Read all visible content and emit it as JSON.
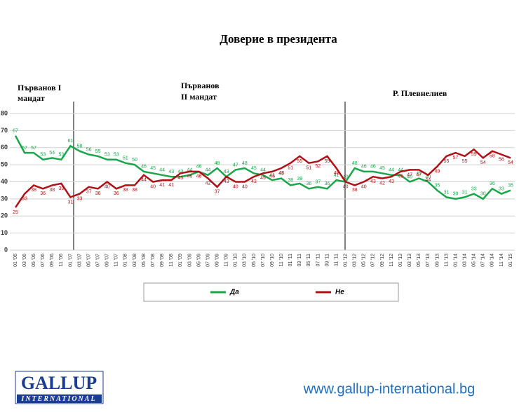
{
  "chart_data": {
    "type": "line",
    "title": "Доверие в президента",
    "annotations": [
      "Първанов I",
      "мандат",
      "Първанов",
      "II мандат",
      "Р. Плевнелиев"
    ],
    "categories": [
      "01 '06",
      "03 '06",
      "05 '06",
      "07 '06",
      "09 '06",
      "11 '06",
      "01 '07",
      "03 '07",
      "05 '07",
      "07 '07",
      "09 '07",
      "11 '07",
      "01 '08",
      "03 '08",
      "05 '08",
      "07 '08",
      "09 '08",
      "11 '08",
      "01 '09",
      "03 '09",
      "05 '09",
      "07 '09",
      "09 '09",
      "11 '09",
      "01 '10",
      "03 '10",
      "05 '10",
      "07 '10",
      "09 '10",
      "11 '10",
      "01 '11",
      "03 '11",
      "05 '11",
      "07 '11",
      "09 '11",
      "11 '11",
      "01 '12",
      "03 '12",
      "05 '12",
      "07 '12",
      "09 '12",
      "11 '12",
      "01 '13",
      "03 '13",
      "05 '13",
      "07 '13",
      "09 '13",
      "11 '13",
      "01 '14",
      "03 '14",
      "05 '14",
      "07 '14",
      "09 '14",
      "11 '14",
      "01 '15"
    ],
    "series": [
      {
        "name": "Да",
        "color": "#1aa64a",
        "values": [
          67,
          57,
          57,
          53,
          54,
          53,
          61,
          58,
          56,
          55,
          53,
          53,
          51,
          50,
          46,
          45,
          44,
          43,
          43,
          44,
          46,
          44,
          48,
          43,
          47,
          48,
          45,
          44,
          41,
          42,
          38,
          39,
          36,
          37,
          36,
          41,
          40,
          48,
          46,
          46,
          45,
          44,
          44,
          40,
          42,
          40,
          35,
          31,
          30,
          31,
          33,
          30,
          36,
          33,
          35
        ]
      },
      {
        "name": "Не",
        "color": "#b01116",
        "values": [
          25,
          33,
          38,
          36,
          38,
          39,
          31,
          33,
          37,
          36,
          40,
          36,
          38,
          38,
          44,
          40,
          41,
          41,
          45,
          46,
          46,
          42,
          37,
          43,
          40,
          40,
          43,
          45,
          46,
          48,
          51,
          55,
          51,
          52,
          55,
          48,
          40,
          38,
          40,
          43,
          42,
          43,
          46,
          47,
          47,
          44,
          49,
          55,
          57,
          55,
          59,
          54,
          58,
          56,
          54
        ]
      }
    ],
    "ylim": [
      0,
      80
    ],
    "yticks": [
      0,
      10,
      20,
      30,
      40,
      50,
      60,
      70,
      80
    ],
    "grid": true,
    "data_labels": true,
    "legend": "bottom",
    "logo": {
      "name": "GALLUP",
      "sub": "INTERNATIONAL"
    },
    "url": "www.gallup-international.bg"
  }
}
